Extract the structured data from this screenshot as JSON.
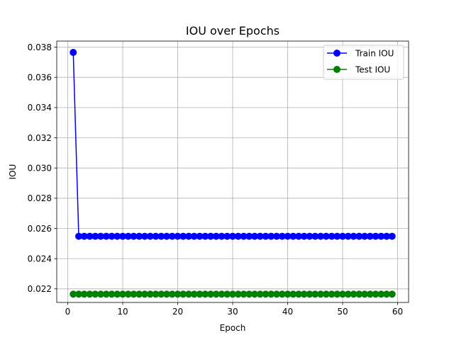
{
  "chart_data": {
    "type": "line",
    "title": "IOU over Epochs",
    "xlabel": "Epoch",
    "ylabel": "IOU",
    "xlim": [
      -2,
      62
    ],
    "ylim": [
      0.0211,
      0.0384
    ],
    "xticks": [
      0,
      10,
      20,
      30,
      40,
      50,
      60
    ],
    "yticks": [
      0.022,
      0.024,
      0.026,
      0.028,
      0.03,
      0.032,
      0.034,
      0.036,
      0.038
    ],
    "ytick_labels": [
      "0.022",
      "0.024",
      "0.026",
      "0.028",
      "0.030",
      "0.032",
      "0.034",
      "0.036",
      "0.038"
    ],
    "grid": true,
    "legend_position": "top-right",
    "series": [
      {
        "name": "Train IOU",
        "color": "#0000ff",
        "marker": "circle",
        "x_start": 1,
        "x_end": 59,
        "first_value": 0.03765,
        "rest_value": 0.02548
      },
      {
        "name": "Test IOU",
        "color": "#008000",
        "marker": "circle",
        "x_start": 1,
        "x_end": 59,
        "first_value": 0.02165,
        "rest_value": 0.02165
      }
    ]
  }
}
